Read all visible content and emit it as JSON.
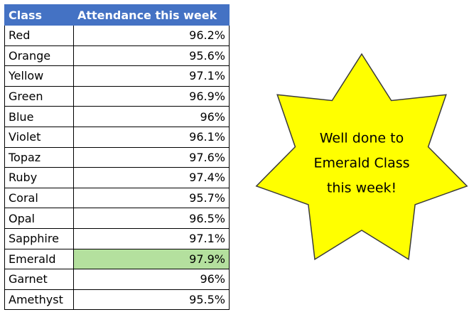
{
  "table": {
    "header": [
      "Class",
      "Attendance this week"
    ],
    "rows": [
      [
        "Red",
        "96.2%"
      ],
      [
        "Orange",
        "95.6%"
      ],
      [
        "Yellow",
        "97.1%"
      ],
      [
        "Green",
        "96.9%"
      ],
      [
        "Blue",
        "96%"
      ],
      [
        "Violet",
        "96.1%"
      ],
      [
        "Topaz",
        "97.6%"
      ],
      [
        "Ruby",
        "97.4%"
      ],
      [
        "Coral",
        "95.7%"
      ],
      [
        "Opal",
        "96.5%"
      ],
      [
        "Sapphire",
        "97.1%"
      ],
      [
        "Emerald",
        "97.9%"
      ],
      [
        "Garnet",
        "96%"
      ],
      [
        "Amethyst",
        "95.5%"
      ]
    ]
  },
  "callout": {
    "lines": [
      "Well done to",
      "Emerald Class",
      "this week!"
    ]
  }
}
